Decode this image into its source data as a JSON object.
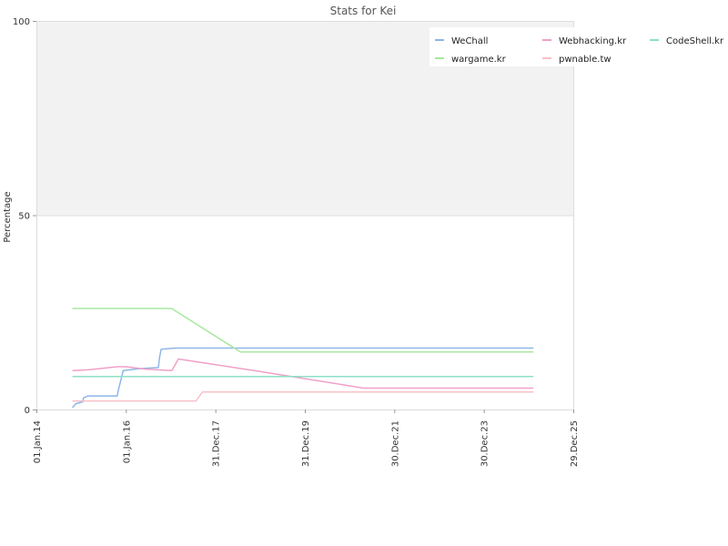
{
  "chart_data": {
    "type": "line",
    "title": "Stats for Kei",
    "ylabel": "Percentage",
    "xlabel": "",
    "ylim": [
      0,
      100
    ],
    "y_ticks": [
      0,
      50,
      100
    ],
    "x_ticks": [
      "01.Jan.14",
      "01.Jan.16",
      "31.Dec.17",
      "31.Dec.19",
      "30.Dec.21",
      "30.Dec.23",
      "29.Dec.25"
    ],
    "background_band": {
      "from": 50,
      "to": 100,
      "color": "#f2f2f2"
    },
    "legend_position": "top-right",
    "series": [
      {
        "name": "WeChall",
        "color": "#8fb6e8",
        "points": [
          [
            "2014-10-22",
            0.5
          ],
          [
            "2014-11-19",
            1.5
          ],
          [
            "2015-01-15",
            2.0
          ],
          [
            "2015-01-20",
            3.0
          ],
          [
            "2015-03-01",
            3.5
          ],
          [
            "2015-10-22",
            3.5
          ],
          [
            "2015-11-01",
            5.0
          ],
          [
            "2015-12-10",
            10.0
          ],
          [
            "2016-04-10",
            10.5
          ],
          [
            "2016-09-22",
            10.8
          ],
          [
            "2016-10-02",
            13.5
          ],
          [
            "2016-10-15",
            15.5
          ],
          [
            "2017-02-10",
            15.8
          ],
          [
            "2025-02-07",
            15.8
          ]
        ]
      },
      {
        "name": "Webhacking.kr",
        "color": "#f0a0c8",
        "points": [
          [
            "2014-10-22",
            10.0
          ],
          [
            "2015-03-01",
            10.2
          ],
          [
            "2015-10-22",
            11.0
          ],
          [
            "2016-01-05",
            11.0
          ],
          [
            "2016-06-05",
            10.4
          ],
          [
            "2017-01-10",
            10.0
          ],
          [
            "2017-03-04",
            13.0
          ],
          [
            "2018-11-14",
            10.0
          ],
          [
            "2021-04-24",
            5.5
          ],
          [
            "2025-02-07",
            5.5
          ]
        ]
      },
      {
        "name": "CodeShell.kr",
        "color": "#8ee0c8",
        "points": [
          [
            "2014-10-22",
            8.5
          ],
          [
            "2025-02-07",
            8.5
          ]
        ]
      },
      {
        "name": "wargame.kr",
        "color": "#a8e8a0",
        "points": [
          [
            "2014-10-22",
            26.0
          ],
          [
            "2017-01-08",
            26.0
          ],
          [
            "2018-07-24",
            14.8
          ],
          [
            "2025-02-07",
            14.8
          ]
        ]
      },
      {
        "name": "pwnable.tw",
        "color": "#f8c0c8",
        "points": [
          [
            "2014-10-22",
            2.2
          ],
          [
            "2017-07-26",
            2.2
          ],
          [
            "2017-09-16",
            4.5
          ],
          [
            "2025-02-07",
            4.5
          ]
        ]
      }
    ]
  }
}
